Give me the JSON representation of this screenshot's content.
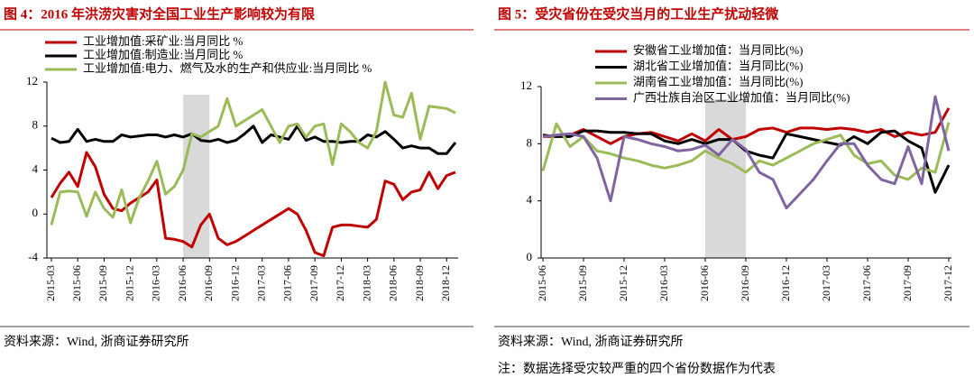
{
  "chart_data": [
    {
      "type": "line",
      "title": "图 4：2016 年洪涝灾害对全国工业生产影响较为有限",
      "categories": [
        "2015-03",
        null,
        null,
        "2015-06",
        null,
        null,
        "2015-09",
        null,
        null,
        "2015-12",
        null,
        null,
        "2016-03",
        null,
        null,
        "2016-06",
        null,
        null,
        "2016-09",
        null,
        null,
        "2016-12",
        null,
        null,
        "2017-03",
        null,
        null,
        "2017-06",
        null,
        null,
        "2017-09",
        null,
        null,
        "2017-12",
        null,
        null,
        "2018-03",
        null,
        null,
        "2018-06",
        null,
        null,
        "2018-09",
        null,
        null,
        "2018-12",
        null
      ],
      "series": [
        {
          "name": "工业增加值:采矿业:当月同比 %",
          "color": "#c00000",
          "values": [
            1.5,
            2.8,
            3.8,
            2.5,
            5.6,
            4.3,
            1.8,
            0.5,
            0.3,
            1.0,
            1.5,
            2.0,
            3.1,
            -2.2,
            -2.3,
            -2.5,
            -3.0,
            -1.0,
            0.0,
            -2.2,
            -2.8,
            -2.5,
            -2.0,
            -1.5,
            -1.0,
            -0.5,
            0.0,
            0.5,
            0.0,
            -1.5,
            -3.5,
            -3.8,
            -1.2,
            -1.0,
            -1.0,
            -1.1,
            -1.2,
            -0.5,
            3.0,
            2.7,
            1.3,
            2.0,
            2.2,
            3.8,
            2.3,
            3.5,
            3.8
          ]
        },
        {
          "name": "工业增加值:制造业:当月同比 %",
          "color": "#000000",
          "values": [
            6.9,
            6.5,
            6.6,
            7.7,
            6.6,
            6.8,
            6.6,
            6.6,
            7.2,
            7.0,
            7.1,
            7.2,
            7.2,
            7.0,
            7.2,
            7.0,
            7.3,
            6.7,
            6.6,
            6.8,
            6.5,
            6.7,
            7.3,
            8.0,
            6.5,
            7.2,
            7.0,
            6.8,
            8.0,
            6.7,
            7.0,
            6.6,
            6.6,
            6.5,
            6.6,
            6.6,
            7.2,
            7.0,
            7.5,
            6.8,
            6.0,
            6.2,
            6.0,
            6.0,
            5.5,
            5.5,
            6.5
          ]
        },
        {
          "name": "工业增加值:电力、燃气及水的生产和供应业:当月同比 %",
          "color": "#9bbb59",
          "values": [
            -1.0,
            2.0,
            2.1,
            2.0,
            -0.2,
            2.0,
            0.5,
            -0.3,
            2.2,
            -0.8,
            1.5,
            3.0,
            4.8,
            1.8,
            2.5,
            4.0,
            7.3,
            7.0,
            7.5,
            8.0,
            10.5,
            8.0,
            8.5,
            9.0,
            9.5,
            8.0,
            6.5,
            8.0,
            8.2,
            7.0,
            8.0,
            8.2,
            4.5,
            8.2,
            7.5,
            6.5,
            6.0,
            7.5,
            12.0,
            9.0,
            8.8,
            11.0,
            6.8,
            9.8,
            9.7,
            9.6,
            9.2
          ]
        }
      ],
      "ylim": [
        -4,
        12
      ],
      "yticks": [
        -4,
        0,
        4,
        8,
        12
      ],
      "legend": "upper left",
      "highlight": [
        "2016-06",
        "2016-09"
      ],
      "source": "资料来源：Wind, 浙商证券研究所"
    },
    {
      "type": "line",
      "title": "图 5：受灾省份在受灾当月的工业生产扰动轻微",
      "categories": [
        "2015-06",
        null,
        null,
        "2015-09",
        null,
        null,
        "2015-12",
        null,
        null,
        "2016-03",
        null,
        null,
        "2016-06",
        null,
        null,
        "2016-09",
        null,
        null,
        "2016-12",
        null,
        null,
        "2017-03",
        null,
        null,
        "2017-06",
        null,
        null,
        "2017-09",
        null,
        null,
        "2017-12"
      ],
      "series": [
        {
          "name": "安徽省工业增加值：当月同比(%)",
          "color": "#c00000",
          "values": [
            8.5,
            8.5,
            8.6,
            9.0,
            8.5,
            8.0,
            8.5,
            8.7,
            8.8,
            8.5,
            8.2,
            8.7,
            8.2,
            9.0,
            8.3,
            8.5,
            9.0,
            9.1,
            8.8,
            9.1,
            9.1,
            9.0,
            9.1,
            9.0,
            8.8,
            9.0,
            8.5,
            8.8,
            8.6,
            8.8,
            10.5
          ]
        },
        {
          "name": "湖北省工业增加值：当月同比(%)",
          "color": "#000000",
          "values": [
            8.6,
            8.5,
            8.5,
            8.9,
            8.9,
            8.8,
            8.8,
            8.7,
            8.7,
            8.2,
            8.0,
            8.3,
            8.0,
            8.3,
            8.3,
            7.5,
            7.2,
            7.0,
            8.7,
            8.5,
            8.3,
            8.1,
            7.9,
            8.5,
            8.0,
            8.8,
            8.9,
            8.2,
            7.7,
            4.6,
            6.5
          ]
        },
        {
          "name": "湖南省工业增加值：当月同比(%)",
          "color": "#9bbb59",
          "values": [
            6.1,
            9.4,
            7.8,
            8.5,
            7.5,
            7.3,
            7.0,
            6.8,
            6.5,
            6.3,
            6.5,
            6.8,
            7.5,
            7.0,
            6.6,
            6.0,
            6.8,
            6.5,
            7.0,
            7.5,
            8.0,
            8.3,
            8.6,
            7.2,
            6.6,
            6.8,
            5.8,
            5.5,
            6.3,
            6.0,
            9.5
          ]
        },
        {
          "name": "广西壮族自治区工业增加值：当月同比(%)",
          "color": "#8064a2",
          "values": [
            8.5,
            8.6,
            8.7,
            8.5,
            7.0,
            4.0,
            8.5,
            8.3,
            8.0,
            7.8,
            7.5,
            7.6,
            7.9,
            7.2,
            8.3,
            7.6,
            6.0,
            5.5,
            3.5,
            4.5,
            5.5,
            6.8,
            8.0,
            8.0,
            6.5,
            5.5,
            5.2,
            7.8,
            5.2,
            11.3,
            7.5
          ]
        }
      ],
      "ylim": [
        0,
        12
      ],
      "yticks": [
        0,
        4,
        8,
        12
      ],
      "legend": "upper right",
      "highlight": [
        "2016-06",
        "2016-09"
      ],
      "source": "资料来源：Wind, 浙商证券研究所",
      "note": "注：数据选择受灾较严重的四个省份数据作为代表"
    }
  ]
}
